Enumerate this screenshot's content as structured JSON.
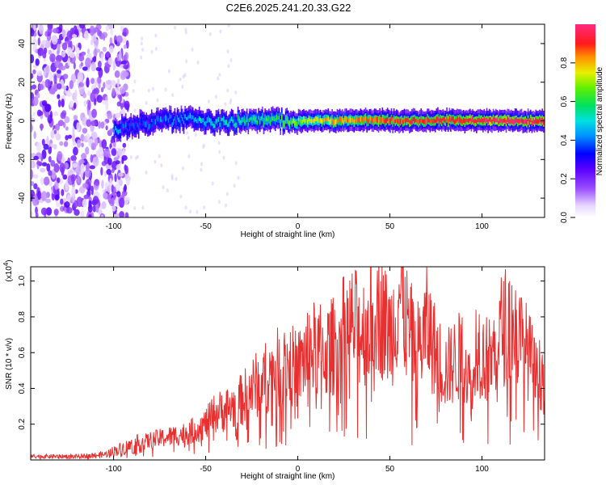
{
  "title": "C2E6.2025.241.20.33.G22",
  "chart_data": [
    {
      "type": "heatmap",
      "name": "spectrogram",
      "xlabel": "Height of straight line (km)",
      "ylabel": "Frequency (Hz)",
      "xlim": [
        -145,
        134
      ],
      "ylim": [
        -50,
        50
      ],
      "xticks": [
        -100,
        -50,
        0,
        50,
        100
      ],
      "yticks": [
        -40,
        -20,
        0,
        20,
        40
      ],
      "colorbar": {
        "label": "Normalized spectral amplitude",
        "range": [
          0,
          1
        ],
        "ticks": [
          "0.0",
          "0.2",
          "0.4",
          "0.6",
          "0.8"
        ],
        "tick_values": [
          0,
          0.2,
          0.4,
          0.6,
          0.8
        ]
      },
      "signal_track": [
        {
          "x": -100,
          "freq": -5,
          "amp": 0.45
        },
        {
          "x": -90,
          "freq": -2,
          "amp": 0.35
        },
        {
          "x": -75,
          "freq": 0,
          "amp": 0.4
        },
        {
          "x": -60,
          "freq": 1,
          "amp": 0.45
        },
        {
          "x": -45,
          "freq": -1,
          "amp": 0.5
        },
        {
          "x": -30,
          "freq": 0,
          "amp": 0.55
        },
        {
          "x": -15,
          "freq": 0,
          "amp": 0.6
        },
        {
          "x": 0,
          "freq": 0,
          "amp": 0.7
        },
        {
          "x": 20,
          "freq": 0,
          "amp": 0.8
        },
        {
          "x": 40,
          "freq": 0.5,
          "amp": 0.85
        },
        {
          "x": 60,
          "freq": 0,
          "amp": 0.9
        },
        {
          "x": 80,
          "freq": 0.5,
          "amp": 0.9
        },
        {
          "x": 100,
          "freq": 0,
          "amp": 0.95
        },
        {
          "x": 134,
          "freq": 0,
          "amp": 0.95
        }
      ],
      "noise_region_end_x": -92
    },
    {
      "type": "line",
      "name": "snr",
      "xlabel": "Height of straight line (km)",
      "ylabel": "SNR (10 * v/v)",
      "multiplier": "(x10",
      "multiplier_exp": "4",
      "multiplier_close": ")",
      "xlim": [
        -145,
        134
      ],
      "ylim": [
        0,
        1.08
      ],
      "xticks": [
        -100,
        -50,
        0,
        50,
        100
      ],
      "yticks": [
        0.2,
        0.4,
        0.6,
        0.8,
        1.0
      ],
      "ytick_labels": [
        "0.2",
        "0.4",
        "0.6",
        "0.8",
        "1.0"
      ],
      "color": "#e83030",
      "series": [
        {
          "name": "SNR",
          "x": [
            -145,
            -120,
            -105,
            -100,
            -90,
            -80,
            -70,
            -60,
            -50,
            -45,
            -40,
            -35,
            -30,
            -25,
            -20,
            -15,
            -10,
            -5,
            0,
            5,
            10,
            15,
            20,
            25,
            30,
            35,
            40,
            42,
            45,
            50,
            53,
            55,
            60,
            65,
            68,
            70,
            75,
            80,
            85,
            90,
            95,
            97,
            100,
            105,
            110,
            115,
            120,
            125,
            130,
            134
          ],
          "values": [
            0.02,
            0.02,
            0.03,
            0.05,
            0.08,
            0.11,
            0.13,
            0.15,
            0.2,
            0.26,
            0.28,
            0.3,
            0.34,
            0.4,
            0.44,
            0.48,
            0.52,
            0.54,
            0.5,
            0.6,
            0.62,
            0.6,
            0.64,
            0.72,
            0.75,
            0.72,
            0.78,
            0.9,
            0.82,
            0.7,
            0.8,
            0.95,
            0.72,
            0.62,
            0.68,
            0.75,
            0.6,
            0.5,
            0.55,
            0.6,
            0.35,
            0.7,
            0.58,
            0.55,
            0.72,
            0.78,
            0.68,
            0.6,
            0.45,
            0.52
          ]
        }
      ]
    }
  ]
}
